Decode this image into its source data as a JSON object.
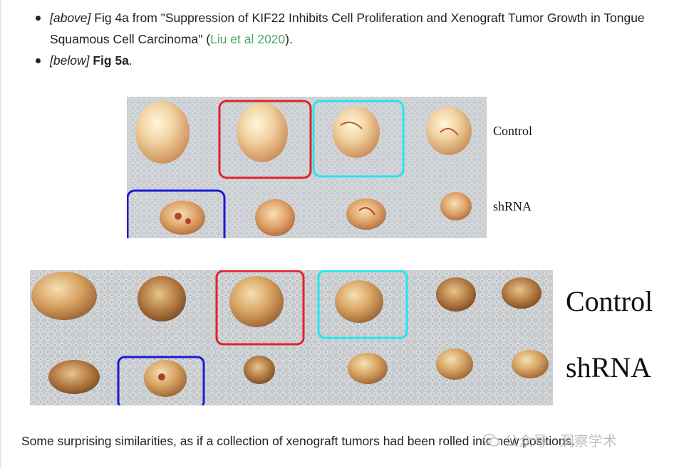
{
  "bullets": [
    {
      "tag": "[above]",
      "text_before_link": " Fig 4a from \"Suppression of KIF22 Inhibits Cell Proliferation and Xenograft Tumor Growth in Tongue Squamous Cell Carcinoma\" (",
      "link_text": "Liu et al 2020",
      "text_after_link": ")."
    },
    {
      "tag": "[below]",
      "bold_text": "Fig 5a",
      "text_after": "."
    }
  ],
  "figure_top": {
    "labels": {
      "control": "Control",
      "shrna": "shRNA"
    }
  },
  "figure_bottom": {
    "labels": {
      "control": "Control",
      "shrna": "shRNA"
    }
  },
  "highlight_colors": {
    "red": "#e0222a",
    "cyan": "#22e6f0",
    "blue": "#1a1ad6"
  },
  "caption": "Some surprising similarities, as if a collection of xenograft tumors had been rolled into new positions.",
  "watermark": {
    "icon": "wechat-icon",
    "text": "公众号 · 洞察学术"
  },
  "colors": {
    "link": "#4aa86a",
    "text": "#222222"
  }
}
